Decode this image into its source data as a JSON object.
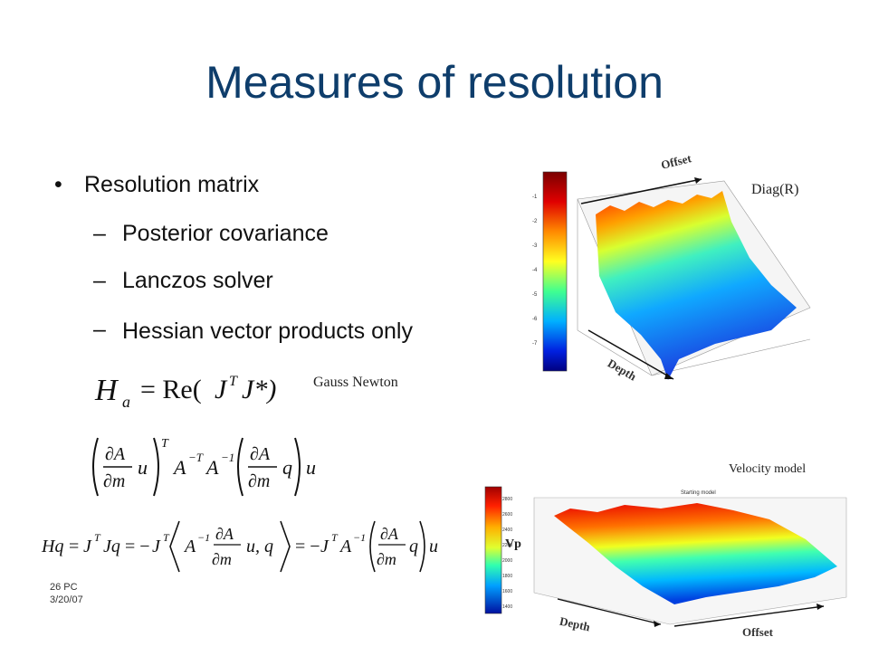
{
  "slide": {
    "title": "Measures of resolution",
    "bullet_main": "Resolution matrix",
    "sub_bullets": [
      "Posterior covariance",
      "Lanczos solver",
      " Hessian vector products only"
    ],
    "dash": "–",
    "bullet_dot": "•",
    "gauss_newton": "Gauss Newton",
    "footer_page": "26 PC",
    "footer_date": "3/20/07"
  },
  "figure_top": {
    "caption": "Diag(R)",
    "offset_label": "Offset",
    "depth_label": "Depth",
    "colorbar_ticks": [
      "-1",
      "-2",
      "-3",
      "-4",
      "-5",
      "-6",
      "-7"
    ]
  },
  "figure_bottom": {
    "caption": "Velocity model",
    "plot_title": "Starting model",
    "vp_label": "Vp",
    "offset_label": "Offset",
    "depth_label": "Depth",
    "colorbar_ticks": [
      "2800",
      "2600",
      "2400",
      "2200",
      "2000",
      "1800",
      "1600",
      "1400"
    ]
  },
  "colors": {
    "title": "#0e3d6b",
    "bullet": "#111111"
  }
}
